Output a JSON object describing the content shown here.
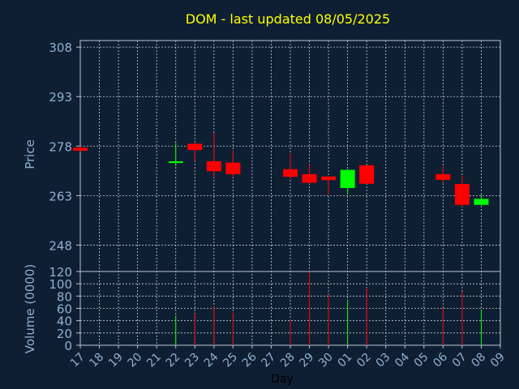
{
  "title": "DOM - last updated 08/05/2025",
  "colors": {
    "background": "#0f1f33",
    "title": "#ffff00",
    "axis_text": "#8fb0d0",
    "axis_line": "#b8c4d0",
    "grid": "#c8d0d8",
    "up": "#00ff00",
    "down": "#ff0000"
  },
  "chart_data": [
    {
      "type": "candlestick",
      "ylabel": "Price",
      "ylim": [
        240,
        310
      ],
      "yticks": [
        248,
        263,
        278,
        293,
        308
      ],
      "grid": true,
      "candles": [
        {
          "x": "17",
          "open": 277.5,
          "high": 278.0,
          "low": 276.4,
          "close": 276.6
        },
        {
          "x": "22",
          "open": 272.9,
          "high": 279.0,
          "low": 272.0,
          "close": 273.4
        },
        {
          "x": "23",
          "open": 278.7,
          "high": 279.0,
          "low": 273.5,
          "close": 276.8
        },
        {
          "x": "24",
          "open": 273.4,
          "high": 282.0,
          "low": 268.5,
          "close": 270.4
        },
        {
          "x": "25",
          "open": 273.0,
          "high": 276.8,
          "low": 268.5,
          "close": 269.5
        },
        {
          "x": "28",
          "open": 271.0,
          "high": 275.8,
          "low": 268.0,
          "close": 268.7
        },
        {
          "x": "29",
          "open": 269.5,
          "high": 272.5,
          "low": 266.5,
          "close": 266.9
        },
        {
          "x": "30",
          "open": 268.8,
          "high": 268.8,
          "low": 263.3,
          "close": 267.7
        },
        {
          "x": "01",
          "open": 265.3,
          "high": 271.0,
          "low": 263.5,
          "close": 270.8
        },
        {
          "x": "02",
          "open": 272.2,
          "high": 272.2,
          "low": 266.6,
          "close": 266.6
        },
        {
          "x": "06",
          "open": 269.5,
          "high": 272.0,
          "low": 267.0,
          "close": 267.8
        },
        {
          "x": "07",
          "open": 266.5,
          "high": 269.0,
          "low": 259.5,
          "close": 260.2
        },
        {
          "x": "08",
          "open": 260.2,
          "high": 263.2,
          "low": 260.0,
          "close": 262.0
        }
      ]
    },
    {
      "type": "bar",
      "ylabel": "Volume (0000)",
      "ylim": [
        0,
        120
      ],
      "yticks": [
        0,
        20,
        40,
        60,
        80,
        100,
        120
      ],
      "grid": true,
      "bars": [
        {
          "x": "22",
          "value": 48,
          "dir": "up"
        },
        {
          "x": "23",
          "value": 51,
          "dir": "down"
        },
        {
          "x": "24",
          "value": 63,
          "dir": "down"
        },
        {
          "x": "25",
          "value": 53,
          "dir": "down"
        },
        {
          "x": "28",
          "value": 42,
          "dir": "down"
        },
        {
          "x": "29",
          "value": 120,
          "dir": "down"
        },
        {
          "x": "30",
          "value": 83,
          "dir": "down"
        },
        {
          "x": "01",
          "value": 74,
          "dir": "up"
        },
        {
          "x": "02",
          "value": 94,
          "dir": "down"
        },
        {
          "x": "06",
          "value": 61,
          "dir": "down"
        },
        {
          "x": "07",
          "value": 87,
          "dir": "down"
        },
        {
          "x": "08",
          "value": 58,
          "dir": "up"
        }
      ]
    }
  ],
  "x_axis": {
    "label": "Day",
    "ticks": [
      "17",
      "18",
      "19",
      "20",
      "21",
      "22",
      "23",
      "24",
      "25",
      "26",
      "27",
      "28",
      "29",
      "30",
      "01",
      "02",
      "03",
      "04",
      "05",
      "06",
      "07",
      "08",
      "09"
    ]
  }
}
